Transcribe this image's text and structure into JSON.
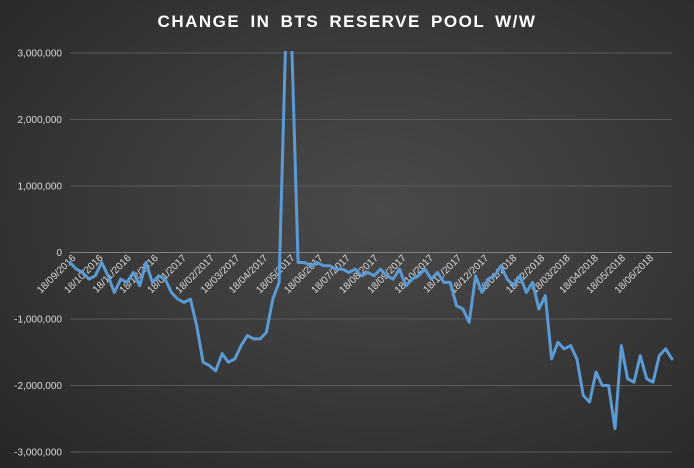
{
  "title": "CHANGE IN BTS RESERVE POOL W/W",
  "colors": {
    "line": "#5b9bd5",
    "gridline": "#595959",
    "zero_line": "#7f7f7f",
    "text": "#d9d9d9"
  },
  "chart_data": {
    "type": "line",
    "title": "CHANGE IN BTS RESERVE POOL W/W",
    "xlabel": "",
    "ylabel": "",
    "ylim": [
      -3000000,
      3000000
    ],
    "y_ticks": [
      3000000,
      2000000,
      1000000,
      0,
      -1000000,
      -2000000,
      -3000000
    ],
    "y_tick_labels": [
      "3,000,000",
      "2,000,000",
      "1,000,000",
      "0",
      "-1,000,000",
      "-2,000,000",
      "-3,000,000"
    ],
    "x_tick_labels": [
      "18/09/2016",
      "18/10/2016",
      "18/11/2016",
      "18/12/2016",
      "18/01/2017",
      "18/02/2017",
      "18/03/2017",
      "18/04/2017",
      "18/05/2017",
      "18/06/2017",
      "18/07/2017",
      "18/08/2017",
      "18/09/2017",
      "18/10/2017",
      "18/11/2017",
      "18/12/2017",
      "18/01/2018",
      "18/02/2018",
      "18/03/2018",
      "18/04/2018",
      "18/05/2018",
      "18/06/2018"
    ],
    "grid": true,
    "legend": "none",
    "series": [
      {
        "x": [
          "2016-09-11",
          "2016-09-18",
          "2016-09-25",
          "2016-10-02",
          "2016-10-09",
          "2016-10-16",
          "2016-10-23",
          "2016-10-30",
          "2016-11-06",
          "2016-11-13",
          "2016-11-20",
          "2016-11-27",
          "2016-12-04",
          "2016-12-11",
          "2016-12-18",
          "2016-12-25",
          "2017-01-01",
          "2017-01-08",
          "2017-01-15",
          "2017-01-22",
          "2017-01-29",
          "2017-02-05",
          "2017-02-12",
          "2017-02-19",
          "2017-02-26",
          "2017-03-05",
          "2017-03-12",
          "2017-03-19",
          "2017-03-26",
          "2017-04-02",
          "2017-04-09",
          "2017-04-16",
          "2017-04-23",
          "2017-04-30",
          "2017-05-07",
          "2017-05-14",
          "2017-05-21",
          "2017-05-28",
          "2017-06-04",
          "2017-06-11",
          "2017-06-18",
          "2017-06-25",
          "2017-07-02",
          "2017-07-09",
          "2017-07-16",
          "2017-07-23",
          "2017-07-30",
          "2017-08-06",
          "2017-08-13",
          "2017-08-20",
          "2017-08-27",
          "2017-09-03",
          "2017-09-10",
          "2017-09-17",
          "2017-09-24",
          "2017-10-01",
          "2017-10-08",
          "2017-10-15",
          "2017-10-22",
          "2017-10-29",
          "2017-11-05",
          "2017-11-12",
          "2017-11-19",
          "2017-11-26",
          "2017-12-03",
          "2017-12-10",
          "2017-12-17",
          "2017-12-24",
          "2017-12-31",
          "2018-01-07",
          "2018-01-14",
          "2018-01-21",
          "2018-01-28",
          "2018-02-04",
          "2018-02-11",
          "2018-02-18",
          "2018-02-25",
          "2018-03-04",
          "2018-03-11",
          "2018-03-18",
          "2018-03-25",
          "2018-04-01",
          "2018-04-08",
          "2018-04-15",
          "2018-04-22",
          "2018-04-29",
          "2018-05-06",
          "2018-05-13",
          "2018-05-20",
          "2018-05-27",
          "2018-06-03",
          "2018-06-10",
          "2018-06-17",
          "2018-06-24",
          "2018-07-01",
          "2018-07-08"
        ],
        "values": [
          -150000,
          -250000,
          -300000,
          -400000,
          -350000,
          -150000,
          -350000,
          -600000,
          -400000,
          -450000,
          -300000,
          -500000,
          -150000,
          -450000,
          -350000,
          -400000,
          -600000,
          -700000,
          -750000,
          -700000,
          -1100000,
          -1650000,
          -1700000,
          -1780000,
          -1520000,
          -1650000,
          -1600000,
          -1400000,
          -1250000,
          -1300000,
          -1300000,
          -1200000,
          -700000,
          -450000,
          3100000,
          3100000,
          -150000,
          -150000,
          -200000,
          -150000,
          -200000,
          -200000,
          -250000,
          -250000,
          -300000,
          -250000,
          -350000,
          -300000,
          -350000,
          -250000,
          -350000,
          -400000,
          -250000,
          -500000,
          -400000,
          -350000,
          -250000,
          -400000,
          -300000,
          -450000,
          -450000,
          -800000,
          -850000,
          -1050000,
          -350000,
          -600000,
          -400000,
          -350000,
          -200000,
          -400000,
          -500000,
          -350000,
          -600000,
          -450000,
          -850000,
          -650000,
          -1600000,
          -1350000,
          -1450000,
          -1400000,
          -1600000,
          -2150000,
          -2250000,
          -1800000,
          -2000000,
          -2000000,
          -2650000,
          -1400000,
          -1900000,
          -1950000,
          -1550000,
          -1900000,
          -1950000,
          -1550000,
          -1450000,
          -1600000
        ]
      }
    ]
  }
}
